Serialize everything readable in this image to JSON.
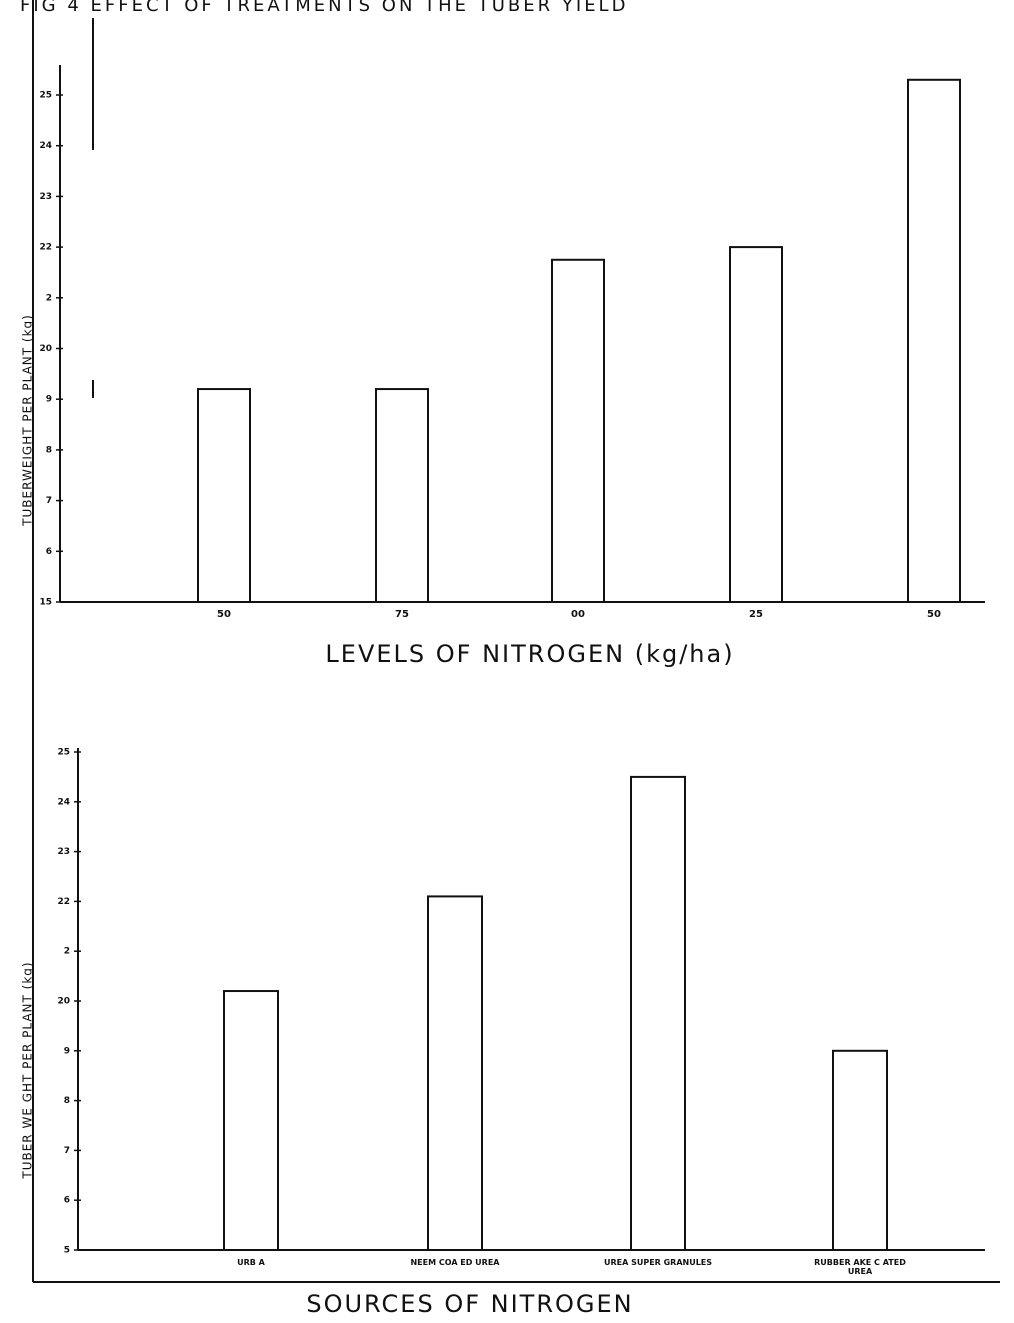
{
  "title": "FIG 4 EFFECT OF TREATMENTS ON THE TUBER YIELD",
  "chart_data": [
    {
      "type": "bar",
      "x_label": "LEVELS OF NITROGEN (kg/ha)",
      "y_label": "TUBERWEIGHT PER PLANT (kg)",
      "categories": [
        "50",
        "75",
        "00",
        "25",
        "50"
      ],
      "values": [
        19.2,
        19.2,
        21.75,
        22.0,
        25.3
      ],
      "color": "#ffffff",
      "ylim": [
        15,
        25
      ],
      "yticks": [
        15,
        {
          "value": 16,
          "label": "6"
        },
        {
          "value": 17,
          "label": "7"
        },
        {
          "value": 18,
          "label": "8"
        },
        {
          "value": 19,
          "label": "9"
        },
        20,
        {
          "value": 21,
          "label": "2"
        },
        22,
        23,
        24,
        25
      ]
    },
    {
      "type": "bar",
      "x_label": "SOURCES OF NITROGEN",
      "y_label": "TUBER WE GHT PER PLANT (kg)",
      "categories": [
        "URB A",
        "NEEM COA ED UREA",
        "UREA SUPER GRANULES",
        "RUBBER AKE C ATED UREA"
      ],
      "values": [
        20.2,
        22.1,
        24.5,
        19.0
      ],
      "color": "#ffffff",
      "ylim": [
        15,
        25
      ],
      "yticks": [
        {
          "value": 15,
          "label": "5"
        },
        {
          "value": 16,
          "label": "6"
        },
        {
          "value": 17,
          "label": "7"
        },
        {
          "value": 18,
          "label": "8"
        },
        {
          "value": 19,
          "label": "9"
        },
        20,
        {
          "value": 21,
          "label": "2"
        },
        22,
        23,
        24,
        25
      ]
    }
  ]
}
